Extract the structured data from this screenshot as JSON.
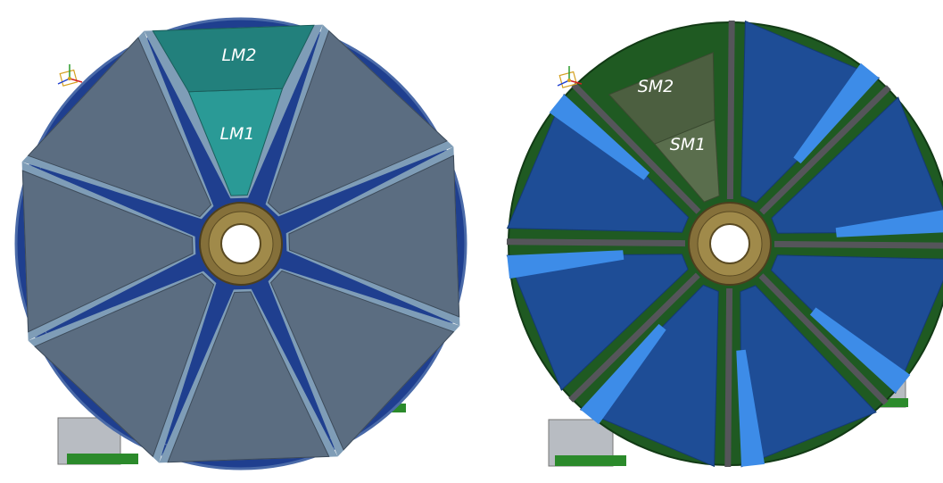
{
  "figure": {
    "left_wheel": {
      "labels": {
        "upper": "LM2",
        "lower": "LM1"
      },
      "colors": {
        "highlight_sector": "#2a9a96",
        "highlight_sector_dark": "#22807c",
        "sector": "#5b6d81",
        "sector_edge": "#7f9db7",
        "frame": "#1f3f8f",
        "hub": "#85703a"
      }
    },
    "right_wheel": {
      "labels": {
        "upper": "SM2",
        "lower": "SM1"
      },
      "colors": {
        "highlight_sector": "#5a6e4d",
        "highlight_sector_dark": "#4c5f40",
        "sector": "#1e4d96",
        "sector_edge": "#3d8ce8",
        "frame": "#1f5a22",
        "spoke": "#55555a",
        "hub": "#85703a"
      }
    },
    "icons": [
      "axis-triad-icon",
      "axis-triad-icon"
    ]
  }
}
